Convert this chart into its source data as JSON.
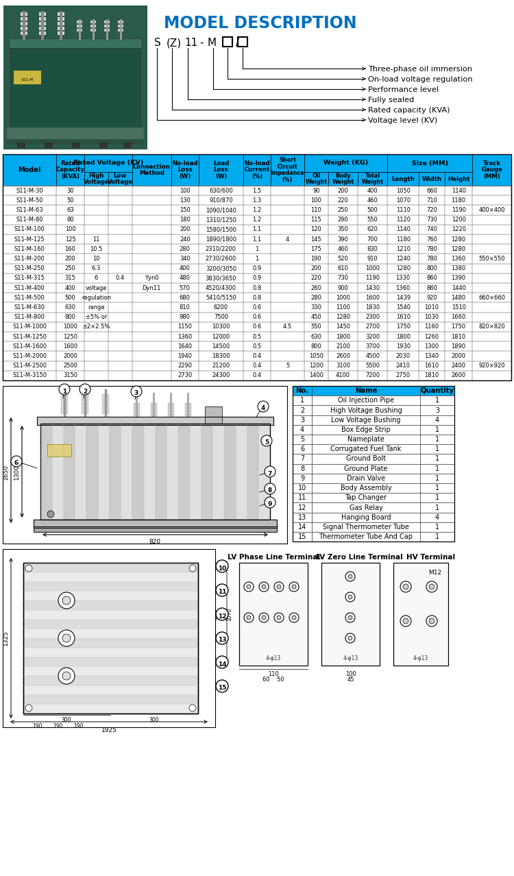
{
  "title": "MODEL DESCRIPTION",
  "title_color": "#0070C0",
  "model_labels": [
    "Voltage level (KV)",
    "Rated capacity (KVA)",
    "Fully sealed",
    "Performance level",
    "On-load voltage regulation",
    "Three-phase oil immersion"
  ],
  "header_color": "#00AAEE",
  "bg_color": "#FFFFFF",
  "table_data": [
    [
      "S11-M-30",
      "30",
      "",
      "",
      "",
      "100",
      "630/600",
      "1.5",
      "",
      "90",
      "200",
      "400",
      "1050",
      "660",
      "1140",
      ""
    ],
    [
      "S11-M-50",
      "50",
      "",
      "",
      "",
      "130",
      "910/870",
      "1.3",
      "",
      "100",
      "220",
      "460",
      "1070",
      "710",
      "1180",
      ""
    ],
    [
      "S11-M-63",
      "63",
      "",
      "",
      "",
      "150",
      "1090/1040",
      "1.2",
      "",
      "110",
      "250",
      "500",
      "1110",
      "720",
      "1190",
      "400×400"
    ],
    [
      "S11-M-80",
      "80",
      "",
      "",
      "",
      "180",
      "1310/1250",
      "1.2",
      "",
      "115",
      "290",
      "550",
      "1120",
      "730",
      "1200",
      ""
    ],
    [
      "S11-M-100",
      "100",
      "",
      "",
      "",
      "200",
      "1580/1500",
      "1.1",
      "",
      "120",
      "350",
      "620",
      "1140",
      "740",
      "1220",
      ""
    ],
    [
      "S11-M-125",
      "125",
      "11",
      "",
      "",
      "240",
      "1890/1800",
      "1.1",
      "4",
      "145",
      "390",
      "700",
      "1180",
      "760",
      "1280",
      ""
    ],
    [
      "S11-M-160",
      "160",
      "10.5",
      "",
      "",
      "280",
      "2310/2200",
      "1",
      "",
      "175",
      "460",
      "830",
      "1210",
      "780",
      "1280",
      ""
    ],
    [
      "S11-M-200",
      "200",
      "10",
      "",
      "",
      "340",
      "2730/2600",
      "1",
      "",
      "190",
      "520",
      "910",
      "1240",
      "780",
      "1360",
      "550×550"
    ],
    [
      "S11-M-250",
      "250",
      "6.3",
      "",
      "",
      "400",
      "3200/3050",
      "0.9",
      "",
      "200",
      "610",
      "1000",
      "1280",
      "800",
      "1380",
      ""
    ],
    [
      "S11-M-315",
      "315",
      "6",
      "0.4",
      "Yyn0",
      "480",
      "3830/3650",
      "0.9",
      "",
      "220",
      "730",
      "1190",
      "1330",
      "860",
      "1390",
      ""
    ],
    [
      "S11-M-400",
      "400",
      "voltage",
      "",
      "Dyn11",
      "570",
      "4520/4300",
      "0.8",
      "",
      "260",
      "900",
      "1430",
      "1360",
      "860",
      "1440",
      ""
    ],
    [
      "S11-M-500",
      "500",
      "regulation",
      "",
      "",
      "680",
      "5410/5150",
      "0.8",
      "",
      "280",
      "1000",
      "1600",
      "1439",
      "920",
      "1480",
      "660×660"
    ],
    [
      "S11-M-630",
      "630",
      "range",
      "",
      "",
      "810",
      "6200",
      "0.6",
      "",
      "330",
      "1100",
      "1830",
      "1540",
      "1010",
      "1510",
      ""
    ],
    [
      "S11-M-800",
      "800",
      "±5% or",
      "",
      "",
      "980",
      "7500",
      "0.6",
      "",
      "450",
      "1280",
      "2300",
      "1610",
      "1030",
      "1660",
      ""
    ],
    [
      "S11-M-1000",
      "1000",
      "±2×2.5%",
      "",
      "",
      "1150",
      "10300",
      "0.6",
      "4.5",
      "550",
      "1450",
      "2700",
      "1750",
      "1160",
      "1750",
      "820×820"
    ],
    [
      "S11-M-1250",
      "1250",
      "",
      "",
      "",
      "1360",
      "12000",
      "0.5",
      "",
      "630",
      "1800",
      "3200",
      "1800",
      "1260",
      "1810",
      ""
    ],
    [
      "S11-M-1600",
      "1600",
      "",
      "",
      "",
      "1640",
      "14500",
      "0.5",
      "",
      "800",
      "2100",
      "3700",
      "1930",
      "1300",
      "1890",
      ""
    ],
    [
      "S11-M-2000",
      "2000",
      "",
      "",
      "",
      "1940",
      "18300",
      "0.4",
      "",
      "1050",
      "2600",
      "4500",
      "2030",
      "1340",
      "2000",
      ""
    ],
    [
      "S11-M-2500",
      "2500",
      "",
      "",
      "",
      "2290",
      "21200",
      "0.4",
      "5",
      "1200",
      "3100",
      "5500",
      "2410",
      "1610",
      "2400",
      "920×920"
    ],
    [
      "S11-M-3150",
      "3150",
      "",
      "",
      "",
      "2730",
      "24300",
      "0.4",
      "",
      "1400",
      "4100",
      "7200",
      "2750",
      "1810",
      "2600",
      ""
    ]
  ],
  "parts_table": [
    [
      "No.",
      "Name",
      "Quantity"
    ],
    [
      "1",
      "Oil Injection Pipe",
      "1"
    ],
    [
      "2",
      "High Voltage Bushing",
      "3"
    ],
    [
      "3",
      "Low Voltage Bushing",
      "4"
    ],
    [
      "4",
      "Box Edge Strip",
      "1"
    ],
    [
      "5",
      "Nameplate",
      "1"
    ],
    [
      "6",
      "Corrugated Fuel Tank",
      "1"
    ],
    [
      "7",
      "Ground Bolt",
      "1"
    ],
    [
      "8",
      "Ground Plate",
      "1"
    ],
    [
      "9",
      "Drain Valve",
      "1"
    ],
    [
      "10",
      "Body Assembly",
      "1"
    ],
    [
      "11",
      "Tap Changer",
      "1"
    ],
    [
      "12",
      "Gas Relay",
      "1"
    ],
    [
      "13",
      "Hanging Board",
      "4"
    ],
    [
      "14",
      "Signal Thermometer Tube",
      "1"
    ],
    [
      "15",
      "Thermometer Tube And Cap",
      "1"
    ]
  ]
}
